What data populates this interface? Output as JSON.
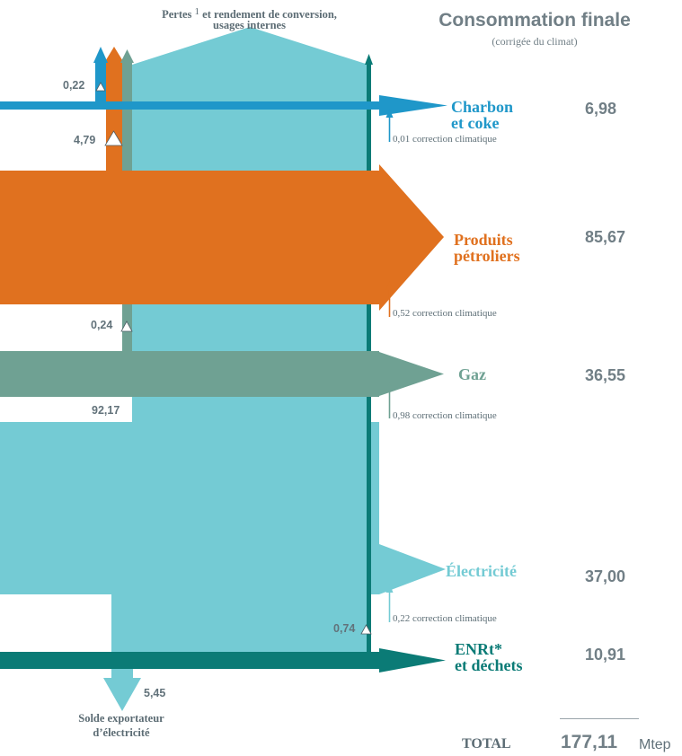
{
  "header": {
    "losses_title_part1": "Pertes",
    "losses_title_sup": "1",
    "losses_title_part2": "et rendement de conversion,",
    "losses_title_line2": "usages internes",
    "consumption_title": "Consommation finale",
    "consumption_subtitle": "(corrigée du climat)"
  },
  "colors": {
    "charbon": "#1f97c9",
    "petrole": "#e0711f",
    "gaz": "#6fa193",
    "electricite": "#74cbd4",
    "enrt": "#0b7b76",
    "grey_text": "#717f86"
  },
  "flows": [
    {
      "id": "charbon",
      "label_line1": "Charbon",
      "label_line2": "et coke",
      "value": "6,98",
      "correction": "0,01 correction climatique"
    },
    {
      "id": "petrole",
      "label_line1": "Produits",
      "label_line2": "pétroliers",
      "value": "85,67",
      "correction": "0,52 correction climatique"
    },
    {
      "id": "gaz",
      "label_line1": "Gaz",
      "value": "36,55",
      "correction": "0,98 correction climatique"
    },
    {
      "id": "electricite",
      "label_line1": "Électricité",
      "value": "37,00",
      "correction": "0,22 correction climatique"
    },
    {
      "id": "enrt",
      "label_line1": "ENRt*",
      "label_line2": "et déchets",
      "value": "10,91"
    }
  ],
  "loss_values": {
    "charbon": "0,22",
    "petrole": "4,79",
    "gaz": "0,24",
    "electricite_production": "92,17",
    "enrt": "0,74"
  },
  "export": {
    "value": "5,45",
    "label_line1": "Solde exportateur",
    "label_line2": "d’électricité"
  },
  "total": {
    "label": "TOTAL",
    "value": "177,11",
    "unit": "Mtep"
  }
}
